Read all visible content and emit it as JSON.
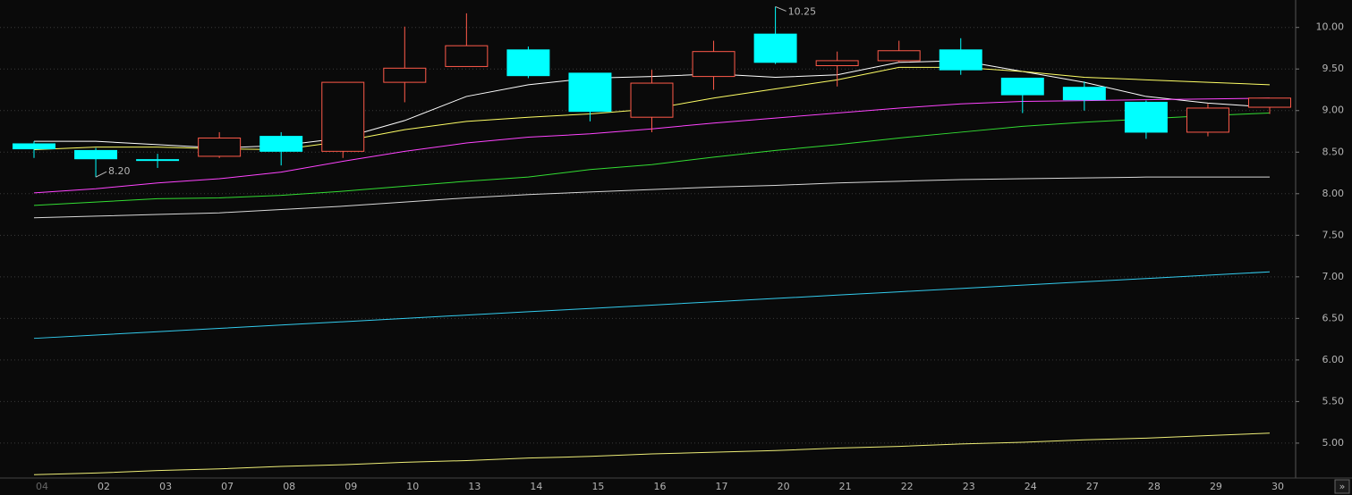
{
  "chart_data": {
    "type": "candlestick",
    "categories": [
      "04",
      "02",
      "03",
      "07",
      "08",
      "09",
      "10",
      "13",
      "14",
      "15",
      "16",
      "17",
      "20",
      "21",
      "22",
      "23",
      "24",
      "27",
      "28",
      "29",
      "30"
    ],
    "open": [
      8.6,
      8.52,
      8.41,
      8.45,
      8.69,
      8.51,
      9.34,
      9.53,
      9.73,
      9.45,
      8.92,
      9.41,
      9.92,
      9.54,
      9.6,
      9.73,
      9.39,
      9.28,
      9.1,
      8.74,
      9.04
    ],
    "high": [
      8.63,
      8.55,
      8.48,
      8.74,
      8.74,
      9.34,
      10.01,
      10.17,
      9.77,
      9.45,
      9.49,
      9.84,
      10.25,
      9.71,
      9.84,
      9.87,
      9.39,
      9.35,
      9.12,
      9.08,
      9.15
    ],
    "low": [
      8.43,
      8.2,
      8.31,
      8.43,
      8.34,
      8.43,
      9.1,
      9.53,
      9.39,
      8.87,
      8.74,
      9.25,
      9.56,
      9.29,
      9.58,
      9.43,
      8.97,
      9.0,
      8.66,
      8.69,
      8.96
    ],
    "close": [
      8.54,
      8.42,
      8.41,
      8.67,
      8.51,
      9.34,
      9.51,
      9.78,
      9.42,
      8.99,
      9.33,
      9.71,
      9.58,
      9.6,
      9.72,
      9.49,
      9.19,
      9.13,
      8.74,
      9.03,
      9.15
    ],
    "up_color": "#ff5a4a",
    "down_color": "#00ffff",
    "annotations": [
      "8.20",
      "10.25"
    ],
    "lines": [
      {
        "color": "#ffffff",
        "values": [
          8.63,
          8.63,
          8.59,
          8.55,
          8.58,
          8.67,
          8.88,
          9.17,
          9.31,
          9.39,
          9.41,
          9.44,
          9.4,
          9.43,
          9.58,
          9.6,
          9.47,
          9.34,
          9.17,
          9.09,
          9.04
        ]
      },
      {
        "color": "#ffff66",
        "values": [
          8.53,
          8.56,
          8.56,
          8.54,
          8.53,
          8.63,
          8.77,
          8.87,
          8.92,
          8.96,
          9.02,
          9.15,
          9.26,
          9.37,
          9.52,
          9.52,
          9.47,
          9.4,
          9.37,
          9.34,
          9.31
        ]
      },
      {
        "color": "#ff44ff",
        "values": [
          8.01,
          8.06,
          8.13,
          8.18,
          8.26,
          8.39,
          8.51,
          8.61,
          8.68,
          8.72,
          8.78,
          8.85,
          8.91,
          8.97,
          9.03,
          9.08,
          9.11,
          9.12,
          9.13,
          9.14,
          9.15
        ]
      },
      {
        "color": "#33dd33",
        "values": [
          7.86,
          7.9,
          7.94,
          7.95,
          7.98,
          8.03,
          8.09,
          8.15,
          8.2,
          8.29,
          8.35,
          8.44,
          8.52,
          8.59,
          8.67,
          8.74,
          8.81,
          8.86,
          8.9,
          8.94,
          8.97
        ]
      },
      {
        "color": "#d8d8d8",
        "values": [
          7.71,
          7.73,
          7.75,
          7.77,
          7.81,
          7.85,
          7.9,
          7.95,
          7.99,
          8.02,
          8.05,
          8.08,
          8.1,
          8.13,
          8.15,
          8.17,
          8.18,
          8.19,
          8.2,
          8.2,
          8.2
        ]
      },
      {
        "color": "#33ccee",
        "values": [
          6.26,
          6.3,
          6.34,
          6.38,
          6.42,
          6.46,
          6.5,
          6.54,
          6.58,
          6.62,
          6.66,
          6.7,
          6.74,
          6.78,
          6.82,
          6.86,
          6.9,
          6.94,
          6.98,
          7.02,
          7.06
        ]
      },
      {
        "color": "#eeee77",
        "values": [
          4.62,
          4.64,
          4.67,
          4.69,
          4.72,
          4.74,
          4.77,
          4.79,
          4.82,
          4.84,
          4.87,
          4.89,
          4.91,
          4.94,
          4.96,
          4.99,
          5.01,
          5.04,
          5.06,
          5.09,
          5.12
        ]
      }
    ],
    "ylim": [
      4.58,
      10.33
    ],
    "yticks": [
      {
        "value": 5,
        "label": "5.00"
      },
      {
        "value": 5.5,
        "label": "5.50"
      },
      {
        "value": 6,
        "label": "6.00"
      },
      {
        "value": 6.5,
        "label": "6.50"
      },
      {
        "value": 7,
        "label": "7.00"
      },
      {
        "value": 7.5,
        "label": "7.50"
      },
      {
        "value": 8,
        "label": "8.00"
      },
      {
        "value": 8.5,
        "label": "8.50"
      },
      {
        "value": 9,
        "label": "9.00"
      },
      {
        "value": 9.5,
        "label": "9.50"
      },
      {
        "value": 10,
        "label": "10.00"
      }
    ],
    "grid": true,
    "nav_button": "»"
  }
}
